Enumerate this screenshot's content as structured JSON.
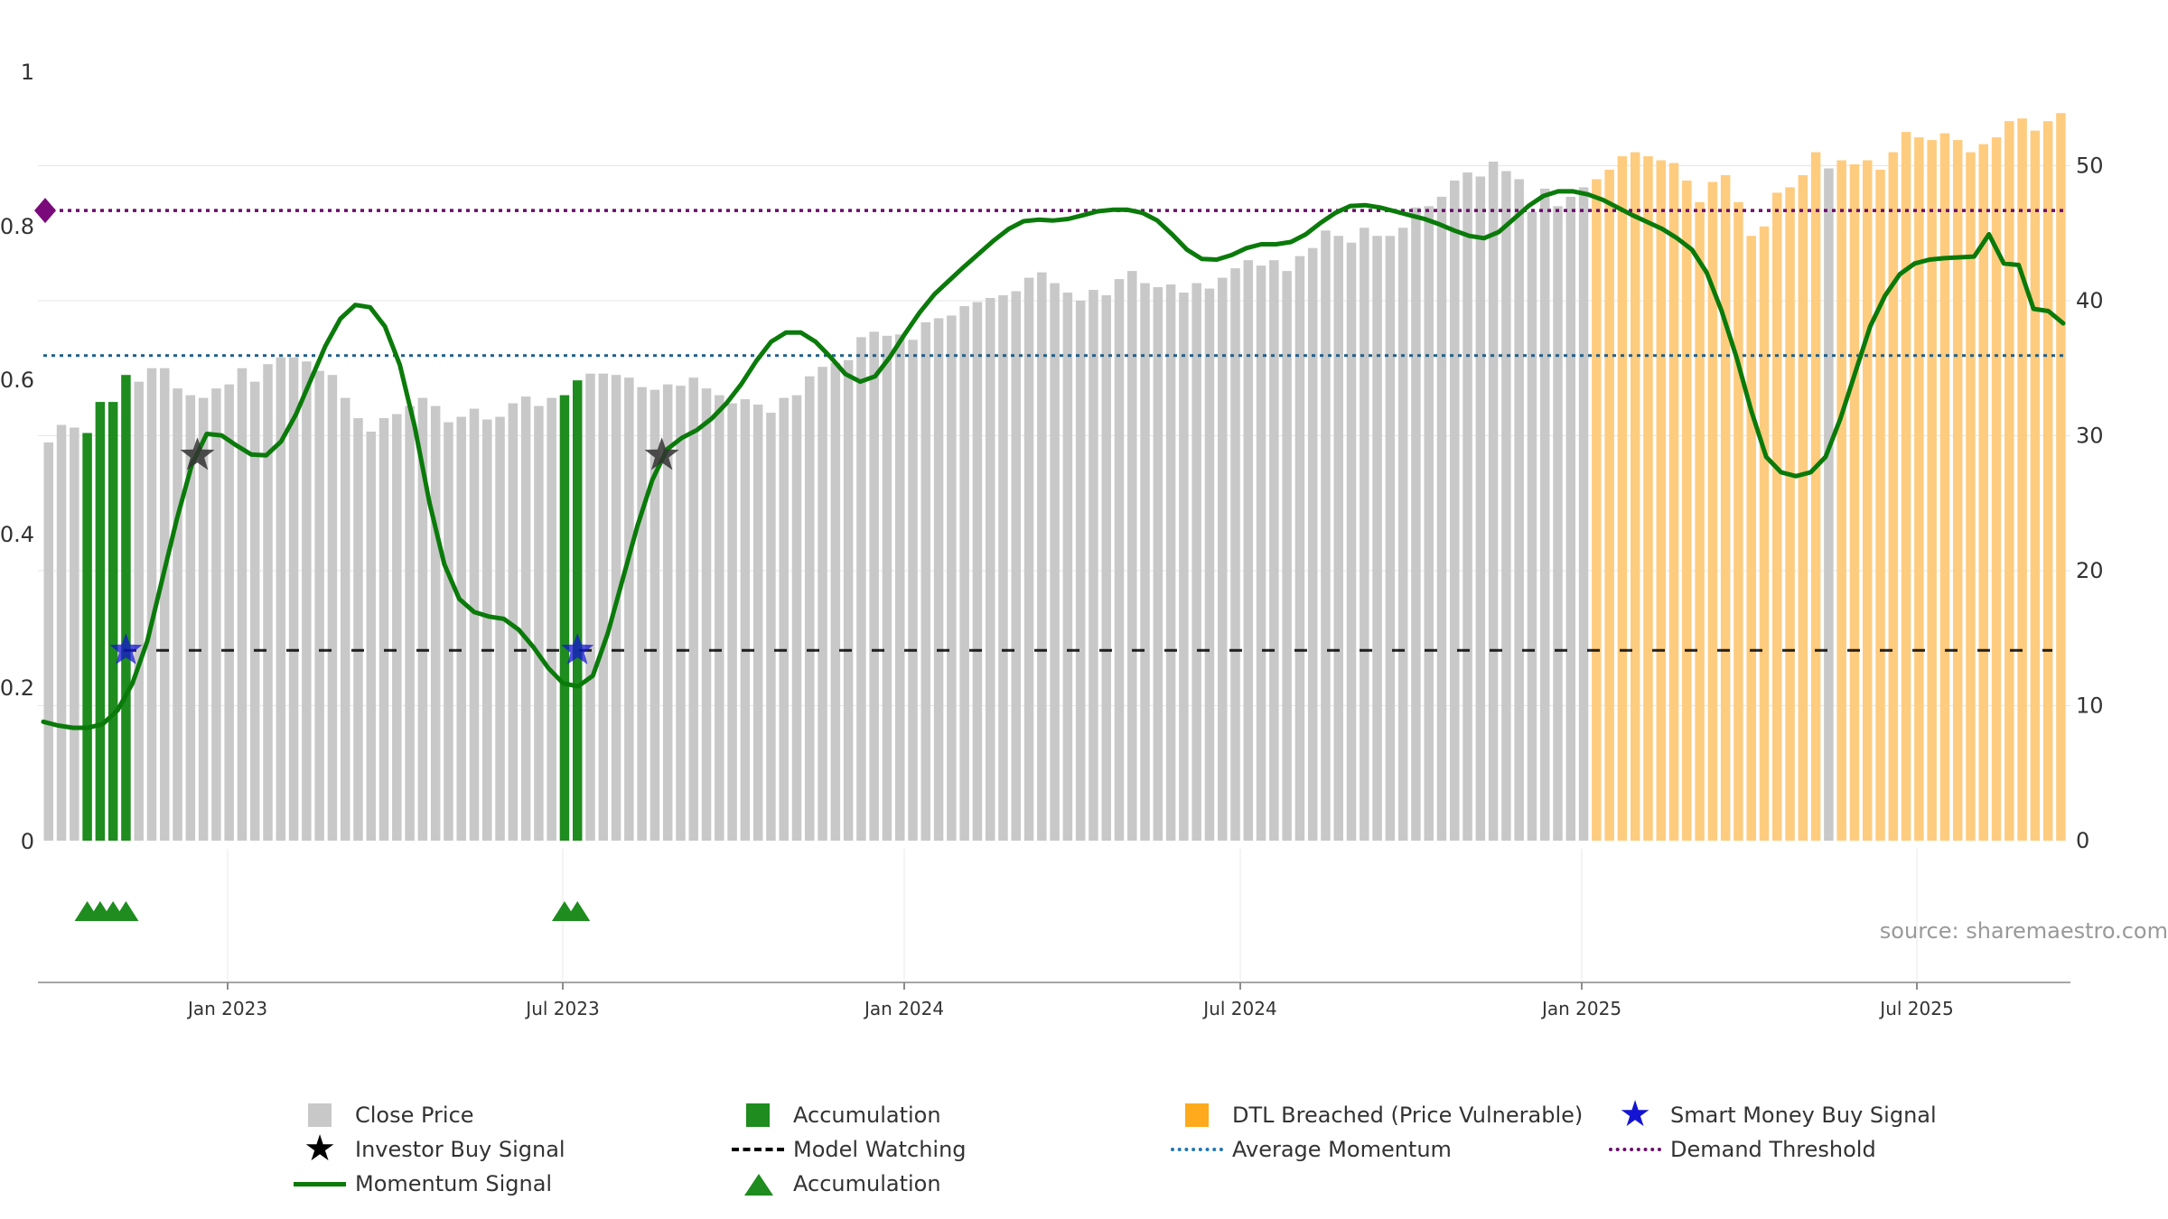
{
  "chart_data": {
    "type": "bar",
    "source_text": "source: sharemaestro.com",
    "x_ticks": [
      "Jan 2023",
      "Jul 2023",
      "Jan 2024",
      "Jul 2024",
      "Jan 2025",
      "Jul 2025"
    ],
    "y_left": {
      "range": [
        0,
        1
      ],
      "ticks": [
        "0",
        "0.2",
        "0.4",
        "0.6",
        "0.8",
        "1"
      ]
    },
    "y_right": {
      "range": [
        0,
        55
      ],
      "ticks": [
        "0",
        "10",
        "20",
        "30",
        "40",
        "50"
      ]
    },
    "grid": true,
    "colors": {
      "close": "#c8c8c8",
      "accumulation": "#1e8c1e",
      "dtl": "#fecc7f",
      "momentum": "#0a7a0a",
      "average_momentum": "#1f5f8b",
      "demand_threshold": "#6a0d6a",
      "model_watching": "#000000",
      "smart_money": "#1414d2",
      "investor": "#333333"
    },
    "close_price": [
      29.5,
      30.8,
      30.6,
      30.2,
      32.5,
      32.5,
      34.5,
      34,
      35,
      35,
      33.5,
      33,
      32.8,
      33.5,
      33.8,
      35,
      34,
      35.3,
      35.8,
      35.8,
      35.5,
      34.8,
      34.5,
      32.8,
      31.3,
      30.3,
      31.3,
      31.6,
      32.2,
      32.8,
      32.2,
      31.0,
      31.4,
      32,
      31.2,
      31.4,
      32.4,
      32.9,
      32.2,
      32.8,
      33.0,
      34.1,
      34.6,
      34.6,
      34.5,
      34.3,
      33.6,
      33.4,
      33.8,
      33.7,
      34.3,
      33.5,
      33.0,
      32.4,
      32.7,
      32.3,
      31.7,
      32.8,
      33.0,
      34.4,
      35.1,
      35.4,
      35.6,
      37.3,
      37.7,
      37.4,
      37.5,
      37.1,
      38.4,
      38.7,
      38.9,
      39.6,
      39.9,
      40.2,
      40.4,
      40.7,
      41.7,
      42.1,
      41.3,
      40.6,
      40.0,
      40.8,
      40.4,
      41.6,
      42.2,
      41.3,
      41.0,
      41.2,
      40.6,
      41.3,
      40.9,
      41.7,
      42.4,
      43.0,
      42.6,
      43.0,
      42.2,
      43.3,
      43.9,
      45.2,
      44.8,
      44.3,
      45.4,
      44.8,
      44.8,
      45.4,
      46.9,
      47.0,
      47.7,
      48.9,
      49.5,
      49.2,
      50.3,
      49.6,
      49.0,
      46.6,
      48.3,
      47.0,
      47.7,
      48.4,
      49.0,
      49.7,
      50.7,
      51.0,
      50.7,
      50.4,
      50.2,
      48.9,
      47.3,
      48.8,
      49.3,
      47.3,
      44.8,
      45.5,
      48.0,
      48.4,
      49.3,
      51.0,
      49.8,
      50.4,
      50.1,
      50.4,
      49.7,
      51.0,
      52.5,
      52.1,
      51.9,
      52.4,
      51.9,
      51.0,
      51.6,
      52.1,
      53.3,
      53.5,
      52.6,
      53.3,
      53.9
    ],
    "momentum": [
      0.155,
      0.15,
      0.147,
      0.147,
      0.152,
      0.17,
      0.205,
      0.26,
      0.34,
      0.42,
      0.49,
      0.53,
      0.528,
      0.515,
      0.503,
      0.502,
      0.52,
      0.555,
      0.6,
      0.645,
      0.68,
      0.698,
      0.695,
      0.67,
      0.62,
      0.54,
      0.44,
      0.36,
      0.315,
      0.298,
      0.292,
      0.289,
      0.275,
      0.252,
      0.225,
      0.205,
      0.201,
      0.215,
      0.27,
      0.34,
      0.41,
      0.47,
      0.51,
      0.525,
      0.535,
      0.55,
      0.57,
      0.595,
      0.625,
      0.65,
      0.662,
      0.662,
      0.65,
      0.63,
      0.608,
      0.598,
      0.605,
      0.63,
      0.66,
      0.688,
      0.712,
      0.73,
      0.748,
      0.765,
      0.782,
      0.797,
      0.807,
      0.809,
      0.808,
      0.81,
      0.815,
      0.82,
      0.822,
      0.822,
      0.818,
      0.808,
      0.79,
      0.77,
      0.758,
      0.757,
      0.763,
      0.772,
      0.777,
      0.777,
      0.78,
      0.79,
      0.805,
      0.818,
      0.827,
      0.828,
      0.825,
      0.82,
      0.815,
      0.81,
      0.803,
      0.795,
      0.788,
      0.785,
      0.793,
      0.81,
      0.827,
      0.84,
      0.846,
      0.846,
      0.842,
      0.835,
      0.825,
      0.815,
      0.806,
      0.797,
      0.785,
      0.77,
      0.74,
      0.69,
      0.63,
      0.56,
      0.5,
      0.48,
      0.475,
      0.48,
      0.5,
      0.55,
      0.61,
      0.67,
      0.71,
      0.738,
      0.752,
      0.757,
      0.759,
      0.76,
      0.761,
      0.79,
      0.752,
      0.75,
      0.693,
      0.69,
      0.674
    ],
    "average_momentum": 0.632,
    "demand_threshold": 0.821,
    "model_watching": 0.248,
    "investor_signals": [
      {
        "bar": 10,
        "y": 0.502
      },
      {
        "bar": 46,
        "y": 0.502
      }
    ],
    "smart_money_signals": [
      {
        "bar": 6,
        "y": 0.248
      },
      {
        "bar": 41,
        "y": 0.248
      }
    ],
    "accumulation_markers": [
      3,
      4,
      5,
      6,
      40,
      41
    ]
  },
  "legend": {
    "close_price": "Close Price",
    "accumulation_bar": "Accumulation",
    "dtl": "DTL Breached (Price Vulnerable)",
    "smart_money": "Smart Money Buy Signal",
    "investor": "Investor Buy Signal",
    "model_watching": "Model Watching",
    "average_momentum": "Average Momentum",
    "demand_threshold": "Demand Threshold",
    "momentum": "Momentum Signal",
    "accumulation_marker": "Accumulation"
  }
}
